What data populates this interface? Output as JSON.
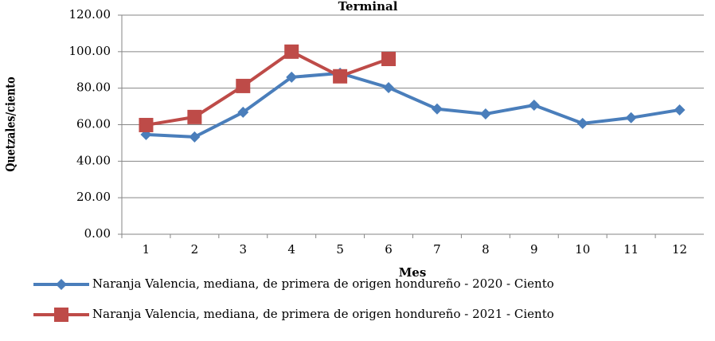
{
  "chart_data": {
    "type": "line",
    "title": "Terminal",
    "x_label": "Mes",
    "y_label": "Quetzales/ciento",
    "categories": [
      "1",
      "2",
      "3",
      "4",
      "5",
      "6",
      "7",
      "8",
      "9",
      "10",
      "11",
      "12"
    ],
    "series": [
      {
        "name": "Naranja Valencia, mediana, de primera de origen hondureño - 2020 - Ciento",
        "color": "#4a7ebb",
        "marker": "diamond",
        "values": [
          54.6,
          53.3,
          66.8,
          86.0,
          88.2,
          80.3,
          68.6,
          65.9,
          70.7,
          60.7,
          63.8,
          68.1
        ]
      },
      {
        "name": "Naranja Valencia, mediana, de primera de origen hondureño - 2021 - Ciento",
        "color": "#be4b48",
        "marker": "square",
        "values": [
          59.8,
          64.2,
          81.2,
          100.0,
          86.5,
          96.0,
          null,
          null,
          null,
          null,
          null,
          null
        ]
      }
    ],
    "ylim": [
      0,
      120
    ],
    "yticks": [
      {
        "value": 0,
        "label": "0.00"
      },
      {
        "value": 20,
        "label": "20.00"
      },
      {
        "value": 40,
        "label": "40.00"
      },
      {
        "value": 60,
        "label": "60.00"
      },
      {
        "value": 80,
        "label": "80.00"
      },
      {
        "value": 100,
        "label": "100.00"
      },
      {
        "value": 120,
        "label": "120.00"
      }
    ],
    "grid": true
  }
}
